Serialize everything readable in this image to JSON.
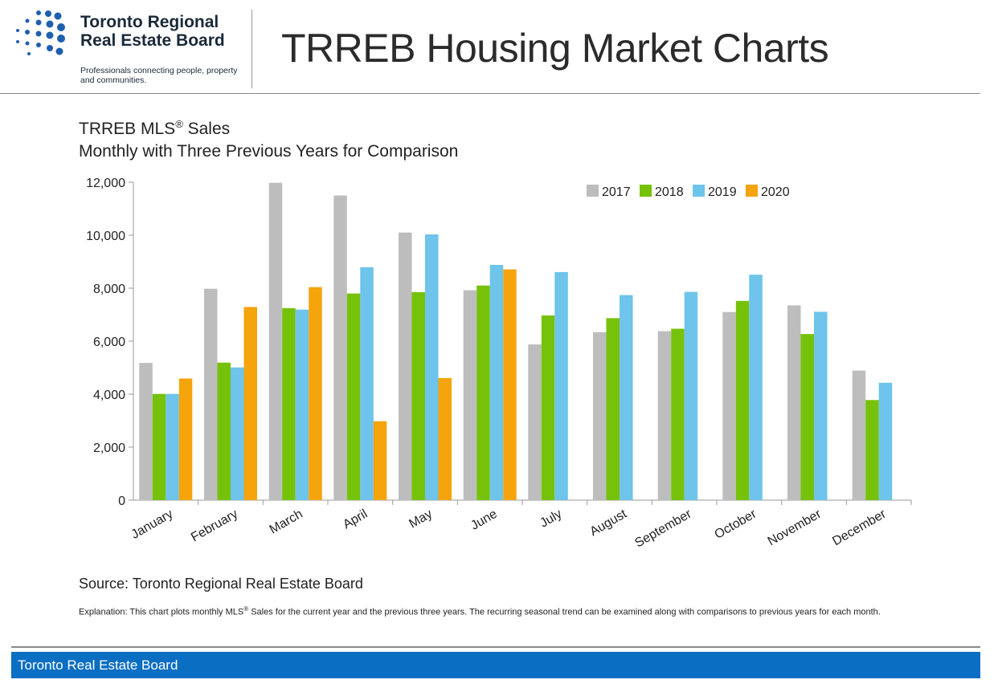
{
  "header": {
    "logo_line1": "Toronto Regional",
    "logo_line2": "Real Estate Board",
    "logo_tagline": "Professionals connecting people, property and communities.",
    "page_title": "TRREB Housing Market Charts"
  },
  "chart_titles": {
    "title_main": "TRREB MLS",
    "title_reg": "®",
    "title_tail": " Sales",
    "subtitle": "Monthly with Three Previous Years for Comparison"
  },
  "colors": {
    "2017": "#bdbdbd",
    "2018": "#76c20a",
    "2019": "#6ec4ea",
    "2020": "#f5a40c",
    "axis": "#999999",
    "footer_bar": "#0a6ec2",
    "logo_dots": "#1f5fae"
  },
  "chart_data": {
    "type": "bar",
    "categories": [
      "January",
      "February",
      "March",
      "April",
      "May",
      "June",
      "July",
      "August",
      "September",
      "October",
      "November",
      "December"
    ],
    "series": [
      {
        "name": "2017",
        "values": [
          5180,
          7980,
          11980,
          11500,
          10100,
          7920,
          5880,
          6340,
          6380,
          7100,
          7350,
          4890
        ]
      },
      {
        "name": "2018",
        "values": [
          4010,
          5190,
          7250,
          7800,
          7850,
          8100,
          6970,
          6870,
          6470,
          7520,
          6270,
          3780
        ]
      },
      {
        "name": "2019",
        "values": [
          4010,
          5010,
          7190,
          8790,
          10030,
          8880,
          8610,
          7740,
          7860,
          8510,
          7110,
          4430
        ]
      },
      {
        "name": "2020",
        "values": [
          4590,
          7290,
          8040,
          2980,
          4610,
          8710,
          null,
          null,
          null,
          null,
          null,
          null
        ]
      }
    ],
    "y_ticks": [
      "0",
      "2,000",
      "4,000",
      "6,000",
      "8,000",
      "10,000",
      "12,000"
    ],
    "ylim": [
      0,
      12000
    ],
    "grid": false,
    "legend_position": "top-right",
    "xlabel": "",
    "ylabel": ""
  },
  "source": "Source: Toronto Regional Real Estate Board",
  "explanation": {
    "part1": "Explanation: This chart plots monthly MLS",
    "reg": "®",
    "part2": " Sales for the current year and the previous three years. The recurring seasonal trend can be examined along with comparisons to previous years for each month."
  },
  "footer": {
    "text": "Toronto Real Estate Board"
  }
}
